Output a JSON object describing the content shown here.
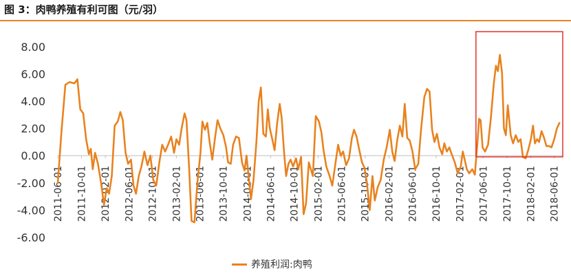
{
  "header": {
    "title": "图 3：肉鸭养殖有利可图（元/羽）"
  },
  "colors": {
    "line": "#e8821e",
    "accent_rule": "#e8821e",
    "highlight_box": "#e0312a"
  },
  "legend": {
    "label": "养殖利润:肉鸭"
  },
  "chart_data": {
    "type": "line",
    "title": "",
    "xlabel": "",
    "ylabel": "",
    "ylim": [
      -6,
      9
    ],
    "yticks": [
      "8.00",
      "6.00",
      "4.00",
      "2.00",
      "0.00",
      "-2.00",
      "-4.00",
      "-6.00"
    ],
    "ytick_values": [
      8,
      6,
      4,
      2,
      0,
      -2,
      -4,
      -6
    ],
    "x_start": "2011-06-01",
    "x_end": "2018-07-15",
    "xticks": [
      "2011-06-01",
      "2011-10-01",
      "2012-02-01",
      "2012-06-01",
      "2012-10-01",
      "2013-02-01",
      "2013-06-01",
      "2013-10-01",
      "2014-02-01",
      "2014-06-01",
      "2014-10-01",
      "2015-02-01",
      "2015-06-01",
      "2015-10-01",
      "2016-02-01",
      "2016-06-01",
      "2016-10-01",
      "2017-02-01",
      "2017-06-01",
      "2017-10-01",
      "2018-02-01",
      "2018-06-01"
    ],
    "grid": false,
    "legend_position": "bottom",
    "highlight": {
      "x_from": "2017-05-01",
      "x_to": "2018-07-15"
    },
    "series": [
      {
        "name": "养殖利润:肉鸭",
        "points": [
          [
            "2011-06-01",
            -2.0
          ],
          [
            "2011-06-20",
            1.8
          ],
          [
            "2011-07-10",
            5.2
          ],
          [
            "2011-08-01",
            5.4
          ],
          [
            "2011-08-25",
            5.3
          ],
          [
            "2011-09-10",
            5.6
          ],
          [
            "2011-09-25",
            3.4
          ],
          [
            "2011-10-10",
            3.1
          ],
          [
            "2011-10-25",
            1.2
          ],
          [
            "2011-11-08",
            0.1
          ],
          [
            "2011-11-18",
            0.5
          ],
          [
            "2011-11-28",
            -1.0
          ],
          [
            "2011-12-10",
            0.2
          ],
          [
            "2011-12-25",
            -0.6
          ],
          [
            "2012-01-10",
            -2.0
          ],
          [
            "2012-01-25",
            -3.6
          ],
          [
            "2012-02-08",
            -2.4
          ],
          [
            "2012-02-20",
            -2.8
          ],
          [
            "2012-03-05",
            -1.5
          ],
          [
            "2012-03-20",
            2.2
          ],
          [
            "2012-04-05",
            2.5
          ],
          [
            "2012-04-18",
            3.2
          ],
          [
            "2012-05-01",
            2.6
          ],
          [
            "2012-05-15",
            0.2
          ],
          [
            "2012-05-28",
            -0.6
          ],
          [
            "2012-06-12",
            -0.3
          ],
          [
            "2012-06-25",
            -2.2
          ],
          [
            "2012-07-08",
            -2.8
          ],
          [
            "2012-07-22",
            -1.5
          ],
          [
            "2012-08-05",
            -0.8
          ],
          [
            "2012-08-20",
            0.3
          ],
          [
            "2012-09-05",
            -0.7
          ],
          [
            "2012-09-20",
            0.0
          ],
          [
            "2012-10-05",
            -1.8
          ],
          [
            "2012-10-20",
            -2.2
          ],
          [
            "2012-11-05",
            -0.5
          ],
          [
            "2012-11-20",
            0.8
          ],
          [
            "2012-12-05",
            0.3
          ],
          [
            "2012-12-20",
            0.8
          ],
          [
            "2013-01-05",
            1.4
          ],
          [
            "2013-01-20",
            0.2
          ],
          [
            "2013-02-01",
            1.2
          ],
          [
            "2013-02-15",
            0.8
          ],
          [
            "2013-02-28",
            2.0
          ],
          [
            "2013-03-15",
            3.1
          ],
          [
            "2013-03-25",
            2.6
          ],
          [
            "2013-04-08",
            -1.0
          ],
          [
            "2013-04-20",
            -4.8
          ],
          [
            "2013-05-05",
            -4.9
          ],
          [
            "2013-05-20",
            -2.0
          ],
          [
            "2013-06-05",
            0.2
          ],
          [
            "2013-06-15",
            2.5
          ],
          [
            "2013-06-28",
            1.9
          ],
          [
            "2013-07-10",
            2.4
          ],
          [
            "2013-07-22",
            1.0
          ],
          [
            "2013-08-05",
            -0.3
          ],
          [
            "2013-08-18",
            1.2
          ],
          [
            "2013-09-01",
            2.6
          ],
          [
            "2013-09-15",
            2.0
          ],
          [
            "2013-10-01",
            1.5
          ],
          [
            "2013-10-15",
            0.6
          ],
          [
            "2013-10-25",
            -0.5
          ],
          [
            "2013-11-08",
            -0.6
          ],
          [
            "2013-11-20",
            0.8
          ],
          [
            "2013-12-05",
            1.4
          ],
          [
            "2013-12-20",
            1.3
          ],
          [
            "2014-01-05",
            -0.5
          ],
          [
            "2014-01-18",
            -1.1
          ],
          [
            "2014-01-28",
            0.0
          ],
          [
            "2014-02-10",
            -1.8
          ],
          [
            "2014-02-20",
            -3.2
          ],
          [
            "2014-03-05",
            -1.8
          ],
          [
            "2014-03-20",
            1.0
          ],
          [
            "2014-04-01",
            4.0
          ],
          [
            "2014-04-12",
            5.0
          ],
          [
            "2014-04-25",
            1.6
          ],
          [
            "2014-05-08",
            1.4
          ],
          [
            "2014-05-18",
            3.4
          ],
          [
            "2014-05-28",
            2.0
          ],
          [
            "2014-06-10",
            1.2
          ],
          [
            "2014-06-22",
            0.4
          ],
          [
            "2014-07-05",
            2.4
          ],
          [
            "2014-07-18",
            3.8
          ],
          [
            "2014-07-28",
            2.8
          ],
          [
            "2014-08-10",
            0.2
          ],
          [
            "2014-08-20",
            -1.5
          ],
          [
            "2014-09-01",
            -0.6
          ],
          [
            "2014-09-12",
            -0.3
          ],
          [
            "2014-09-25",
            -0.8
          ],
          [
            "2014-10-10",
            -0.2
          ],
          [
            "2014-10-22",
            -1.0
          ],
          [
            "2014-11-05",
            -0.1
          ],
          [
            "2014-11-18",
            -4.3
          ],
          [
            "2014-12-01",
            -3.5
          ],
          [
            "2014-12-15",
            -0.5
          ],
          [
            "2015-01-05",
            -1.5
          ],
          [
            "2015-01-20",
            2.9
          ],
          [
            "2015-02-05",
            2.5
          ],
          [
            "2015-02-18",
            1.7
          ],
          [
            "2015-03-01",
            0.4
          ],
          [
            "2015-03-15",
            -0.8
          ],
          [
            "2015-04-01",
            -1.5
          ],
          [
            "2015-04-15",
            -2.2
          ],
          [
            "2015-05-01",
            -0.6
          ],
          [
            "2015-05-15",
            0.8
          ],
          [
            "2015-05-28",
            0.0
          ],
          [
            "2015-06-10",
            0.3
          ],
          [
            "2015-06-25",
            -0.7
          ],
          [
            "2015-07-10",
            -0.2
          ],
          [
            "2015-07-25",
            1.3
          ],
          [
            "2015-08-05",
            1.9
          ],
          [
            "2015-08-18",
            1.4
          ],
          [
            "2015-09-01",
            0.4
          ],
          [
            "2015-09-15",
            -0.5
          ],
          [
            "2015-09-28",
            -0.9
          ],
          [
            "2015-10-10",
            -2.0
          ],
          [
            "2015-10-25",
            -4.0
          ],
          [
            "2015-11-08",
            -1.5
          ],
          [
            "2015-11-20",
            -3.3
          ],
          [
            "2015-12-05",
            -2.3
          ],
          [
            "2015-12-20",
            -1.8
          ],
          [
            "2016-01-05",
            -0.3
          ],
          [
            "2016-01-20",
            0.6
          ],
          [
            "2016-02-05",
            1.9
          ],
          [
            "2016-02-18",
            0.3
          ],
          [
            "2016-03-01",
            -0.4
          ],
          [
            "2016-03-15",
            1.2
          ],
          [
            "2016-03-28",
            2.2
          ],
          [
            "2016-04-10",
            1.4
          ],
          [
            "2016-04-22",
            3.8
          ],
          [
            "2016-05-05",
            1.3
          ],
          [
            "2016-05-18",
            1.1
          ],
          [
            "2016-06-01",
            0.3
          ],
          [
            "2016-06-15",
            -1.0
          ],
          [
            "2016-07-01",
            -0.6
          ],
          [
            "2016-07-15",
            1.9
          ],
          [
            "2016-08-01",
            4.3
          ],
          [
            "2016-08-15",
            4.9
          ],
          [
            "2016-08-28",
            4.7
          ],
          [
            "2016-09-10",
            1.9
          ],
          [
            "2016-09-22",
            1.0
          ],
          [
            "2016-10-05",
            1.6
          ],
          [
            "2016-10-18",
            0.6
          ],
          [
            "2016-11-01",
            0.1
          ],
          [
            "2016-11-12",
            0.9
          ],
          [
            "2016-11-25",
            0.3
          ],
          [
            "2016-12-08",
            0.6
          ],
          [
            "2016-12-20",
            0.1
          ],
          [
            "2017-01-05",
            -0.5
          ],
          [
            "2017-01-20",
            -1.3
          ],
          [
            "2017-02-05",
            -0.8
          ],
          [
            "2017-02-15",
            0.3
          ],
          [
            "2017-02-25",
            -0.3
          ],
          [
            "2017-03-08",
            -1.0
          ],
          [
            "2017-03-20",
            -1.3
          ],
          [
            "2017-04-05",
            -1.0
          ],
          [
            "2017-04-18",
            -1.4
          ],
          [
            "2017-05-01",
            0.8
          ],
          [
            "2017-05-10",
            2.7
          ],
          [
            "2017-05-18",
            2.6
          ],
          [
            "2017-05-28",
            0.6
          ],
          [
            "2017-06-10",
            0.3
          ],
          [
            "2017-06-25",
            0.8
          ],
          [
            "2017-07-10",
            2.8
          ],
          [
            "2017-07-25",
            5.3
          ],
          [
            "2017-08-05",
            6.6
          ],
          [
            "2017-08-15",
            6.2
          ],
          [
            "2017-08-25",
            7.4
          ],
          [
            "2017-09-05",
            6.1
          ],
          [
            "2017-09-15",
            2.0
          ],
          [
            "2017-09-25",
            1.5
          ],
          [
            "2017-10-05",
            3.7
          ],
          [
            "2017-10-20",
            1.5
          ],
          [
            "2017-11-01",
            0.9
          ],
          [
            "2017-11-15",
            1.5
          ],
          [
            "2017-11-28",
            1.0
          ],
          [
            "2017-12-10",
            1.2
          ],
          [
            "2017-12-22",
            -0.1
          ],
          [
            "2018-01-05",
            -0.2
          ],
          [
            "2018-01-18",
            0.4
          ],
          [
            "2018-02-01",
            1.2
          ],
          [
            "2018-02-12",
            2.2
          ],
          [
            "2018-02-22",
            0.9
          ],
          [
            "2018-03-05",
            1.2
          ],
          [
            "2018-03-15",
            1.0
          ],
          [
            "2018-03-28",
            1.8
          ],
          [
            "2018-04-10",
            1.3
          ],
          [
            "2018-04-22",
            0.7
          ],
          [
            "2018-05-05",
            0.7
          ],
          [
            "2018-05-18",
            0.6
          ],
          [
            "2018-06-01",
            1.2
          ],
          [
            "2018-06-15",
            2.0
          ],
          [
            "2018-06-28",
            2.4
          ]
        ]
      }
    ]
  }
}
